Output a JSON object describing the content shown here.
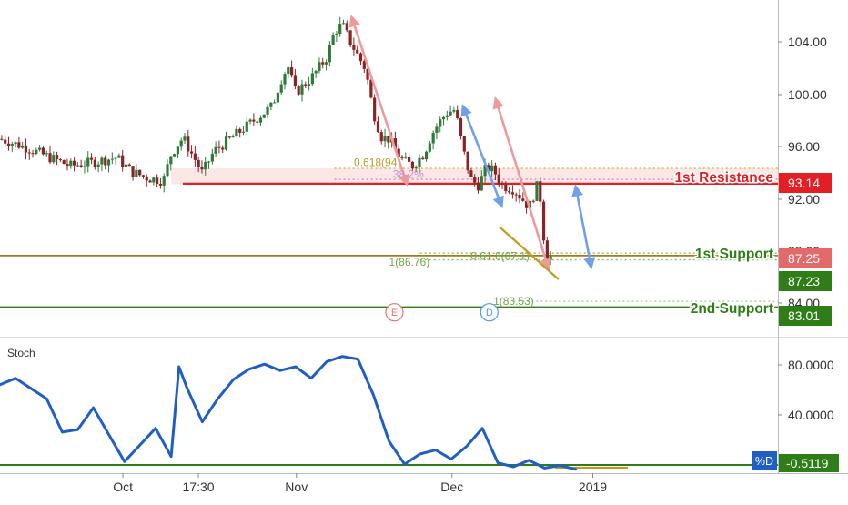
{
  "chart_data": [
    {
      "type": "candlestick",
      "panel": "price",
      "ylim": [
        80.6,
        108.2
      ],
      "y_ticks": [
        "104.00",
        "100.00",
        "96.00",
        "92.00",
        "88.00",
        "84.00"
      ],
      "x_ticks": [
        {
          "label": "Oct",
          "x": 0.158
        },
        {
          "label": "17:30",
          "x": 0.255
        },
        {
          "label": "Nov",
          "x": 0.381
        },
        {
          "label": "Dec",
          "x": 0.581
        },
        {
          "label": "2019",
          "x": 0.762
        }
      ],
      "price_path": [
        [
          0.0,
          96.8
        ],
        [
          0.03,
          96.2
        ],
        [
          0.06,
          95.4
        ],
        [
          0.09,
          94.6
        ],
        [
          0.12,
          94.9
        ],
        [
          0.15,
          95.3
        ],
        [
          0.17,
          94.1
        ],
        [
          0.19,
          93.6
        ],
        [
          0.21,
          93.4
        ],
        [
          0.22,
          95.6
        ],
        [
          0.235,
          96.9
        ],
        [
          0.25,
          95.2
        ],
        [
          0.26,
          94.0
        ],
        [
          0.275,
          95.8
        ],
        [
          0.3,
          97.0
        ],
        [
          0.33,
          98.5
        ],
        [
          0.35,
          99.5
        ],
        [
          0.36,
          101.5
        ],
        [
          0.37,
          102.8
        ],
        [
          0.38,
          100.6
        ],
        [
          0.4,
          101.8
        ],
        [
          0.42,
          103.5
        ],
        [
          0.43,
          105.6
        ],
        [
          0.44,
          106.2
        ],
        [
          0.45,
          104.8
        ],
        [
          0.47,
          102.5
        ],
        [
          0.48,
          99.0
        ],
        [
          0.49,
          97.0
        ],
        [
          0.5,
          96.8
        ],
        [
          0.515,
          95.2
        ],
        [
          0.53,
          94.6
        ],
        [
          0.545,
          95.6
        ],
        [
          0.555,
          97.2
        ],
        [
          0.565,
          98.2
        ],
        [
          0.575,
          99.0
        ],
        [
          0.585,
          99.2
        ],
        [
          0.595,
          96.0
        ],
        [
          0.605,
          93.5
        ],
        [
          0.615,
          93.0
        ],
        [
          0.625,
          94.5
        ],
        [
          0.635,
          94.2
        ],
        [
          0.645,
          93.0
        ],
        [
          0.66,
          92.7
        ],
        [
          0.67,
          92.0
        ],
        [
          0.68,
          91.2
        ],
        [
          0.69,
          92.9
        ],
        [
          0.695,
          91.8
        ],
        [
          0.7,
          88.0
        ],
        [
          0.705,
          86.9
        ],
        [
          0.71,
          87.3
        ]
      ],
      "levels": [
        {
          "name": "1st Resistance",
          "value": 93.14,
          "label": "93.14",
          "color": "#e31e24"
        },
        {
          "name": "1st Support",
          "value": 87.25,
          "label": "87.25",
          "color": "#2e7d16"
        },
        {
          "name": "2nd Support",
          "value": 83.01,
          "label": "83.01",
          "color": "#2e7d16"
        }
      ],
      "current_price": {
        "label": "87.23",
        "color": "#2e7d16"
      },
      "resistance_zone": {
        "low": 93.1,
        "high": 94.4
      },
      "dotted_levels": [
        {
          "value": 94.4,
          "color": "#c8b23a"
        },
        {
          "value": 93.5,
          "color": "#c98fd4"
        },
        {
          "value": 86.9,
          "color": "#7cc05e"
        },
        {
          "value": 87.45,
          "color": "#7cc05e"
        },
        {
          "value": 83.5,
          "color": "#9ac98a"
        }
      ],
      "fib_labels": [
        {
          "text": "0.618(94",
          "at": [
            0.455,
            94.6
          ],
          "color": "#b99a2e"
        },
        {
          "text": "38.2%",
          "at": [
            0.505,
            93.6
          ],
          "color": "#c98fd4"
        },
        {
          "text": "1(86.76)",
          "at": [
            0.5,
            86.4
          ],
          "color": "#6fa84e"
        },
        {
          "text": "0.61.8(87.1)",
          "at": [
            0.605,
            86.9
          ],
          "color": "#6fa84e"
        },
        {
          "text": "1(83.53)",
          "at": [
            0.634,
            83.2
          ],
          "color": "#6fa84e"
        }
      ],
      "event_markers": [
        {
          "label": "E",
          "at": [
            0.507,
            82.6
          ],
          "color": "#e57373"
        },
        {
          "label": "D",
          "at": [
            0.629,
            82.6
          ],
          "color": "#4a9fd8"
        }
      ],
      "arrows": [
        {
          "from": [
            0.452,
            106.8
          ],
          "to": [
            0.523,
            93.1
          ],
          "color": "#ec9a9a"
        },
        {
          "from": [
            0.595,
            99.5
          ],
          "to": [
            0.645,
            91.3
          ],
          "color": "#6fa0e8"
        },
        {
          "from": [
            0.637,
            100.1
          ],
          "to": [
            0.705,
            86.2
          ],
          "color": "#ec9a9a"
        },
        {
          "from": [
            0.74,
            92.9
          ],
          "to": [
            0.76,
            86.3
          ],
          "color": "#6fa0e8"
        }
      ],
      "trendline": {
        "from": [
          0.642,
          89.6
        ],
        "to": [
          0.718,
          85.3
        ],
        "color": "#c49a1c"
      },
      "annotations": [
        {
          "text": "1st Resistance",
          "color": "#e31e24"
        },
        {
          "text": "1st Support",
          "color": "#2e7d16"
        },
        {
          "text": "2nd Support",
          "color": "#2e7d16"
        }
      ]
    },
    {
      "type": "line",
      "panel": "oscillator",
      "title": "Stoch",
      "series": [
        {
          "name": "%D",
          "color": "#1f5fc4"
        }
      ],
      "ylim": [
        -3,
        102
      ],
      "y_ticks": [
        "80.0000",
        "40.0000"
      ],
      "current_value": {
        "label": "-0.5119"
      },
      "x": [
        0.0,
        0.02,
        0.04,
        0.06,
        0.08,
        0.1,
        0.12,
        0.14,
        0.16,
        0.18,
        0.2,
        0.22,
        0.23,
        0.24,
        0.26,
        0.28,
        0.3,
        0.32,
        0.34,
        0.36,
        0.38,
        0.4,
        0.42,
        0.44,
        0.46,
        0.48,
        0.5,
        0.52,
        0.54,
        0.56,
        0.58,
        0.6,
        0.62,
        0.64,
        0.66,
        0.68,
        0.7,
        0.72,
        0.74
      ],
      "values": [
        66,
        71,
        63,
        55,
        29,
        31,
        48,
        27,
        6,
        19,
        32,
        10,
        80,
        64,
        37,
        55,
        70,
        78,
        82,
        77,
        80,
        71,
        84,
        88,
        86,
        58,
        22,
        4,
        12,
        15,
        8,
        18,
        32,
        5,
        2,
        7,
        1,
        3,
        0
      ]
    }
  ],
  "axis_badge": "%D"
}
